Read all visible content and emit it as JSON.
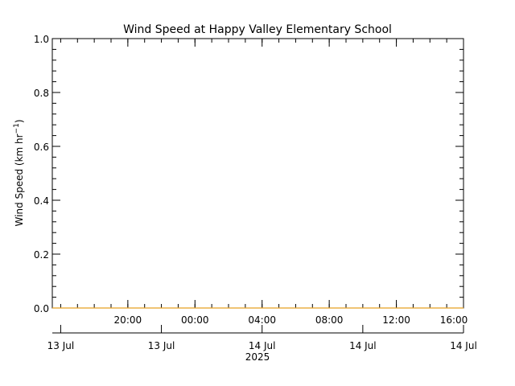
{
  "chart_data": {
    "type": "line",
    "title": "Wind Speed at Happy Valley Elementary School",
    "ylabel_main": "Wind Speed (km hr",
    "ylabel_sup": "−1",
    "ylabel_close": ")",
    "xlabel": "",
    "ylim": [
      0,
      1.0
    ],
    "y_ticks": [
      "0.0",
      "0.2",
      "0.4",
      "0.6",
      "0.8",
      "1.0"
    ],
    "x_time_ticks": [
      "20:00",
      "00:00",
      "04:00",
      "08:00",
      "12:00",
      "16:00"
    ],
    "x_date_ticks": [
      "13 Jul",
      "13 Jul",
      "14 Jul",
      "14 Jul",
      "14 Jul"
    ],
    "year_label": "2025",
    "grid": false,
    "series": [
      {
        "color": "#e8a020",
        "x": [
          "13 Jul 15:30",
          "14 Jul 16:00"
        ],
        "y": [
          0.0,
          0.0
        ]
      }
    ]
  }
}
